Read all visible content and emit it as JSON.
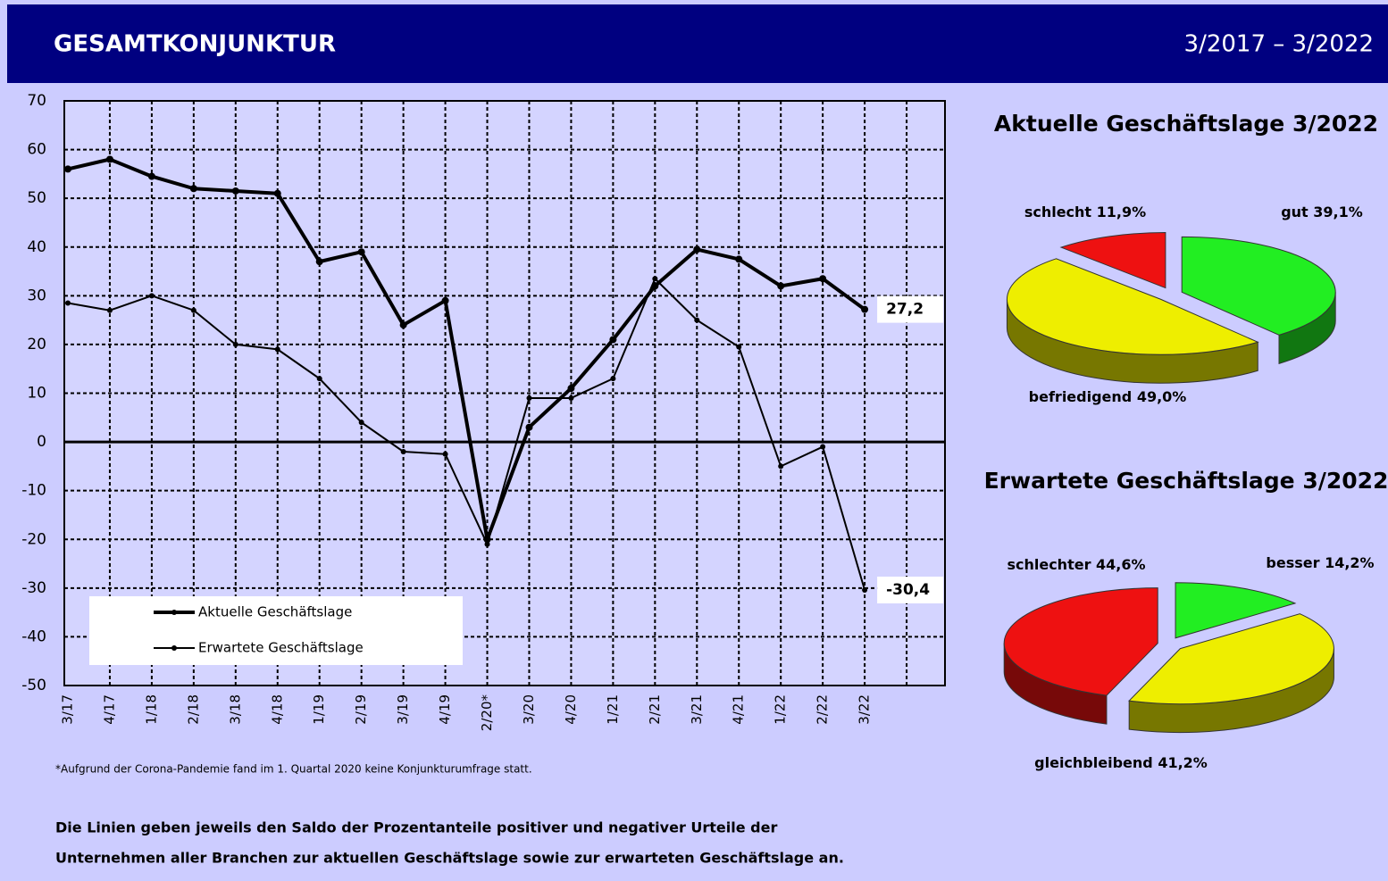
{
  "header": {
    "title": "GESAMTKONJUNKTUR",
    "period": "3/2017 – 3/2022"
  },
  "footnote": "*Aufgrund der Corona-Pandemie fand im 1. Quartal 2020 keine Konjunkturumfrage statt.",
  "caption": [
    "Die Linien geben jeweils den Saldo der Prozentanteile positiver und negativer Urteile der",
    "Unternehmen aller Branchen zur aktuellen Geschäftslage sowie zur erwarteten Geschäftslage an."
  ],
  "chart_data": [
    {
      "type": "line",
      "categories": [
        "3/17",
        "4/17",
        "1/18",
        "2/18",
        "3/18",
        "4/18",
        "1/19",
        "2/19",
        "3/19",
        "4/19",
        "2/20*",
        "3/20",
        "4/20",
        "1/21",
        "2/21",
        "3/21",
        "4/21",
        "1/22",
        "2/22",
        "3/22"
      ],
      "series": [
        {
          "name": "Aktuelle Geschäftslage",
          "color": "#000000",
          "values": [
            56,
            58,
            54.5,
            52,
            51.5,
            51,
            37,
            39,
            24,
            29,
            -20,
            3,
            11,
            21,
            32,
            39.5,
            37.5,
            32,
            33.5,
            27.2
          ],
          "value_labels": [
            null,
            null,
            null,
            null,
            null,
            null,
            null,
            null,
            null,
            null,
            null,
            null,
            null,
            null,
            null,
            null,
            null,
            null,
            null,
            "27,2"
          ]
        },
        {
          "name": "Erwartete Geschäftslage",
          "color": "#000000",
          "values": [
            28.5,
            27,
            30,
            27,
            20,
            19,
            13,
            4,
            -2,
            -2.5,
            -21,
            9,
            9,
            13,
            33.5,
            25,
            19.5,
            -5,
            -1,
            -30.4
          ],
          "value_labels": [
            null,
            null,
            null,
            null,
            null,
            null,
            null,
            null,
            null,
            null,
            null,
            null,
            null,
            null,
            null,
            null,
            null,
            null,
            null,
            "-30,4"
          ]
        }
      ],
      "ylim": [
        -50,
        70
      ],
      "yticks": [
        -50,
        -40,
        -30,
        -20,
        -10,
        0,
        10,
        20,
        30,
        40,
        50,
        60,
        70
      ],
      "grid": true,
      "legend": "lower left"
    },
    {
      "type": "pie",
      "title": "Aktuelle Geschäftslage 3/2022",
      "categories": [
        "gut",
        "befriedigend",
        "schlecht"
      ],
      "values": [
        39.1,
        49.0,
        11.9
      ],
      "value_labels": [
        "39,1%",
        "49,0%",
        "11,9%"
      ],
      "colors": [
        "#22ee22",
        "#eeee00",
        "#ee1111"
      ]
    },
    {
      "type": "pie",
      "title": "Erwartete Geschäftslage 3/2022",
      "categories": [
        "besser",
        "gleichbleibend",
        "schlechter"
      ],
      "values": [
        14.2,
        41.2,
        44.6
      ],
      "value_labels": [
        "14,2%",
        "41,2%",
        "44,6%"
      ],
      "colors": [
        "#22ee22",
        "#eeee00",
        "#ee1111"
      ]
    }
  ]
}
